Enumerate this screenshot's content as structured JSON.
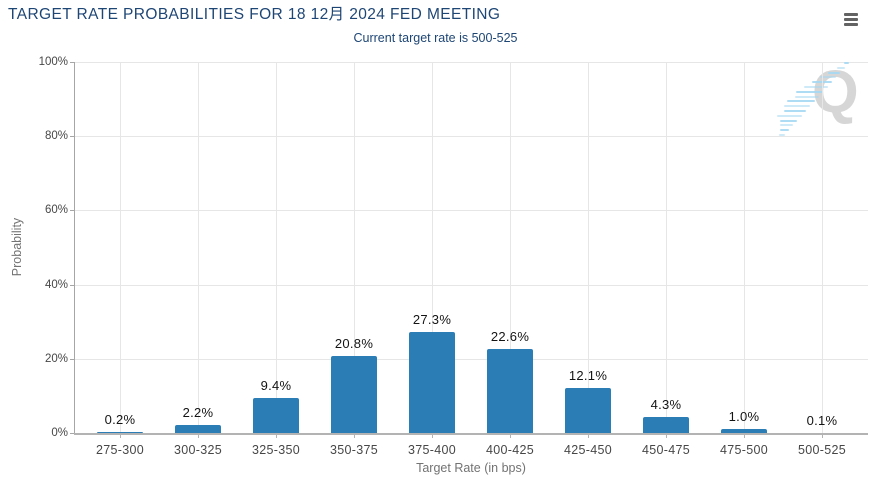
{
  "header": {
    "title": "TARGET RATE PROBABILITIES FOR 18 12月 2024 FED MEETING",
    "subtitle": "Current target rate is 500-525"
  },
  "watermark": {
    "letter": "Q"
  },
  "colors": {
    "title_navy": "#1E4675",
    "bar_blue": "#2B7DB5",
    "gridline": "#E6E6E6",
    "axis_line": "#A6A6A6",
    "tick_label": "#474747",
    "axis_title": "#737373",
    "value_label": "#141414",
    "menu_icon": "#636363",
    "watermark_gray": "#D6D6D6",
    "watermark_blue": "#A5D8F3"
  },
  "chart_data": {
    "type": "bar",
    "title": "TARGET RATE PROBABILITIES FOR 18 12月 2024 FED MEETING",
    "subtitle": "Current target rate is 500-525",
    "categories": [
      "275-300",
      "300-325",
      "325-350",
      "350-375",
      "375-400",
      "400-425",
      "425-450",
      "450-475",
      "475-500",
      "500-525"
    ],
    "values": [
      0.2,
      2.2,
      9.4,
      20.8,
      27.3,
      22.6,
      12.1,
      4.3,
      1.0,
      0.1
    ],
    "value_labels": [
      "0.2%",
      "2.2%",
      "9.4%",
      "20.8%",
      "27.3%",
      "22.6%",
      "12.1%",
      "4.3%",
      "1.0%",
      "0.1%"
    ],
    "xlabel": "Target Rate (in bps)",
    "ylabel": "Probability",
    "ylim": [
      0,
      100
    ],
    "yticks": [
      0,
      20,
      40,
      60,
      80,
      100
    ],
    "ytick_labels": [
      "0%",
      "20%",
      "40%",
      "60%",
      "80%",
      "100%"
    ],
    "grid": true,
    "legend": false,
    "bar_color": "#2B7DB5"
  }
}
